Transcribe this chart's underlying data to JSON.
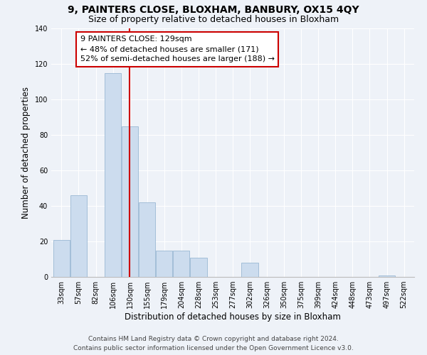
{
  "title": "9, PAINTERS CLOSE, BLOXHAM, BANBURY, OX15 4QY",
  "subtitle": "Size of property relative to detached houses in Bloxham",
  "xlabel": "Distribution of detached houses by size in Bloxham",
  "ylabel": "Number of detached properties",
  "footer_line1": "Contains HM Land Registry data © Crown copyright and database right 2024.",
  "footer_line2": "Contains public sector information licensed under the Open Government Licence v3.0.",
  "annotation_line1": "9 PAINTERS CLOSE: 129sqm",
  "annotation_line2": "← 48% of detached houses are smaller (171)",
  "annotation_line3": "52% of semi-detached houses are larger (188) →",
  "bar_labels": [
    "33sqm",
    "57sqm",
    "82sqm",
    "106sqm",
    "130sqm",
    "155sqm",
    "179sqm",
    "204sqm",
    "228sqm",
    "253sqm",
    "277sqm",
    "302sqm",
    "326sqm",
    "350sqm",
    "375sqm",
    "399sqm",
    "424sqm",
    "448sqm",
    "473sqm",
    "497sqm",
    "522sqm"
  ],
  "bar_heights": [
    21,
    46,
    0,
    115,
    85,
    42,
    15,
    15,
    11,
    0,
    0,
    8,
    0,
    0,
    0,
    0,
    0,
    0,
    0,
    1,
    0
  ],
  "bar_color": "#ccdcee",
  "bar_edgecolor": "#9ab8d4",
  "vline_color": "#cc0000",
  "vline_index": 3.98,
  "box_edgecolor": "#cc0000",
  "background_color": "#eef2f8",
  "ylim": [
    0,
    140
  ],
  "yticks": [
    0,
    20,
    40,
    60,
    80,
    100,
    120,
    140
  ],
  "title_fontsize": 10,
  "subtitle_fontsize": 9,
  "axis_fontsize": 8.5,
  "tick_fontsize": 7,
  "footer_fontsize": 6.5,
  "annotation_fontsize": 8
}
